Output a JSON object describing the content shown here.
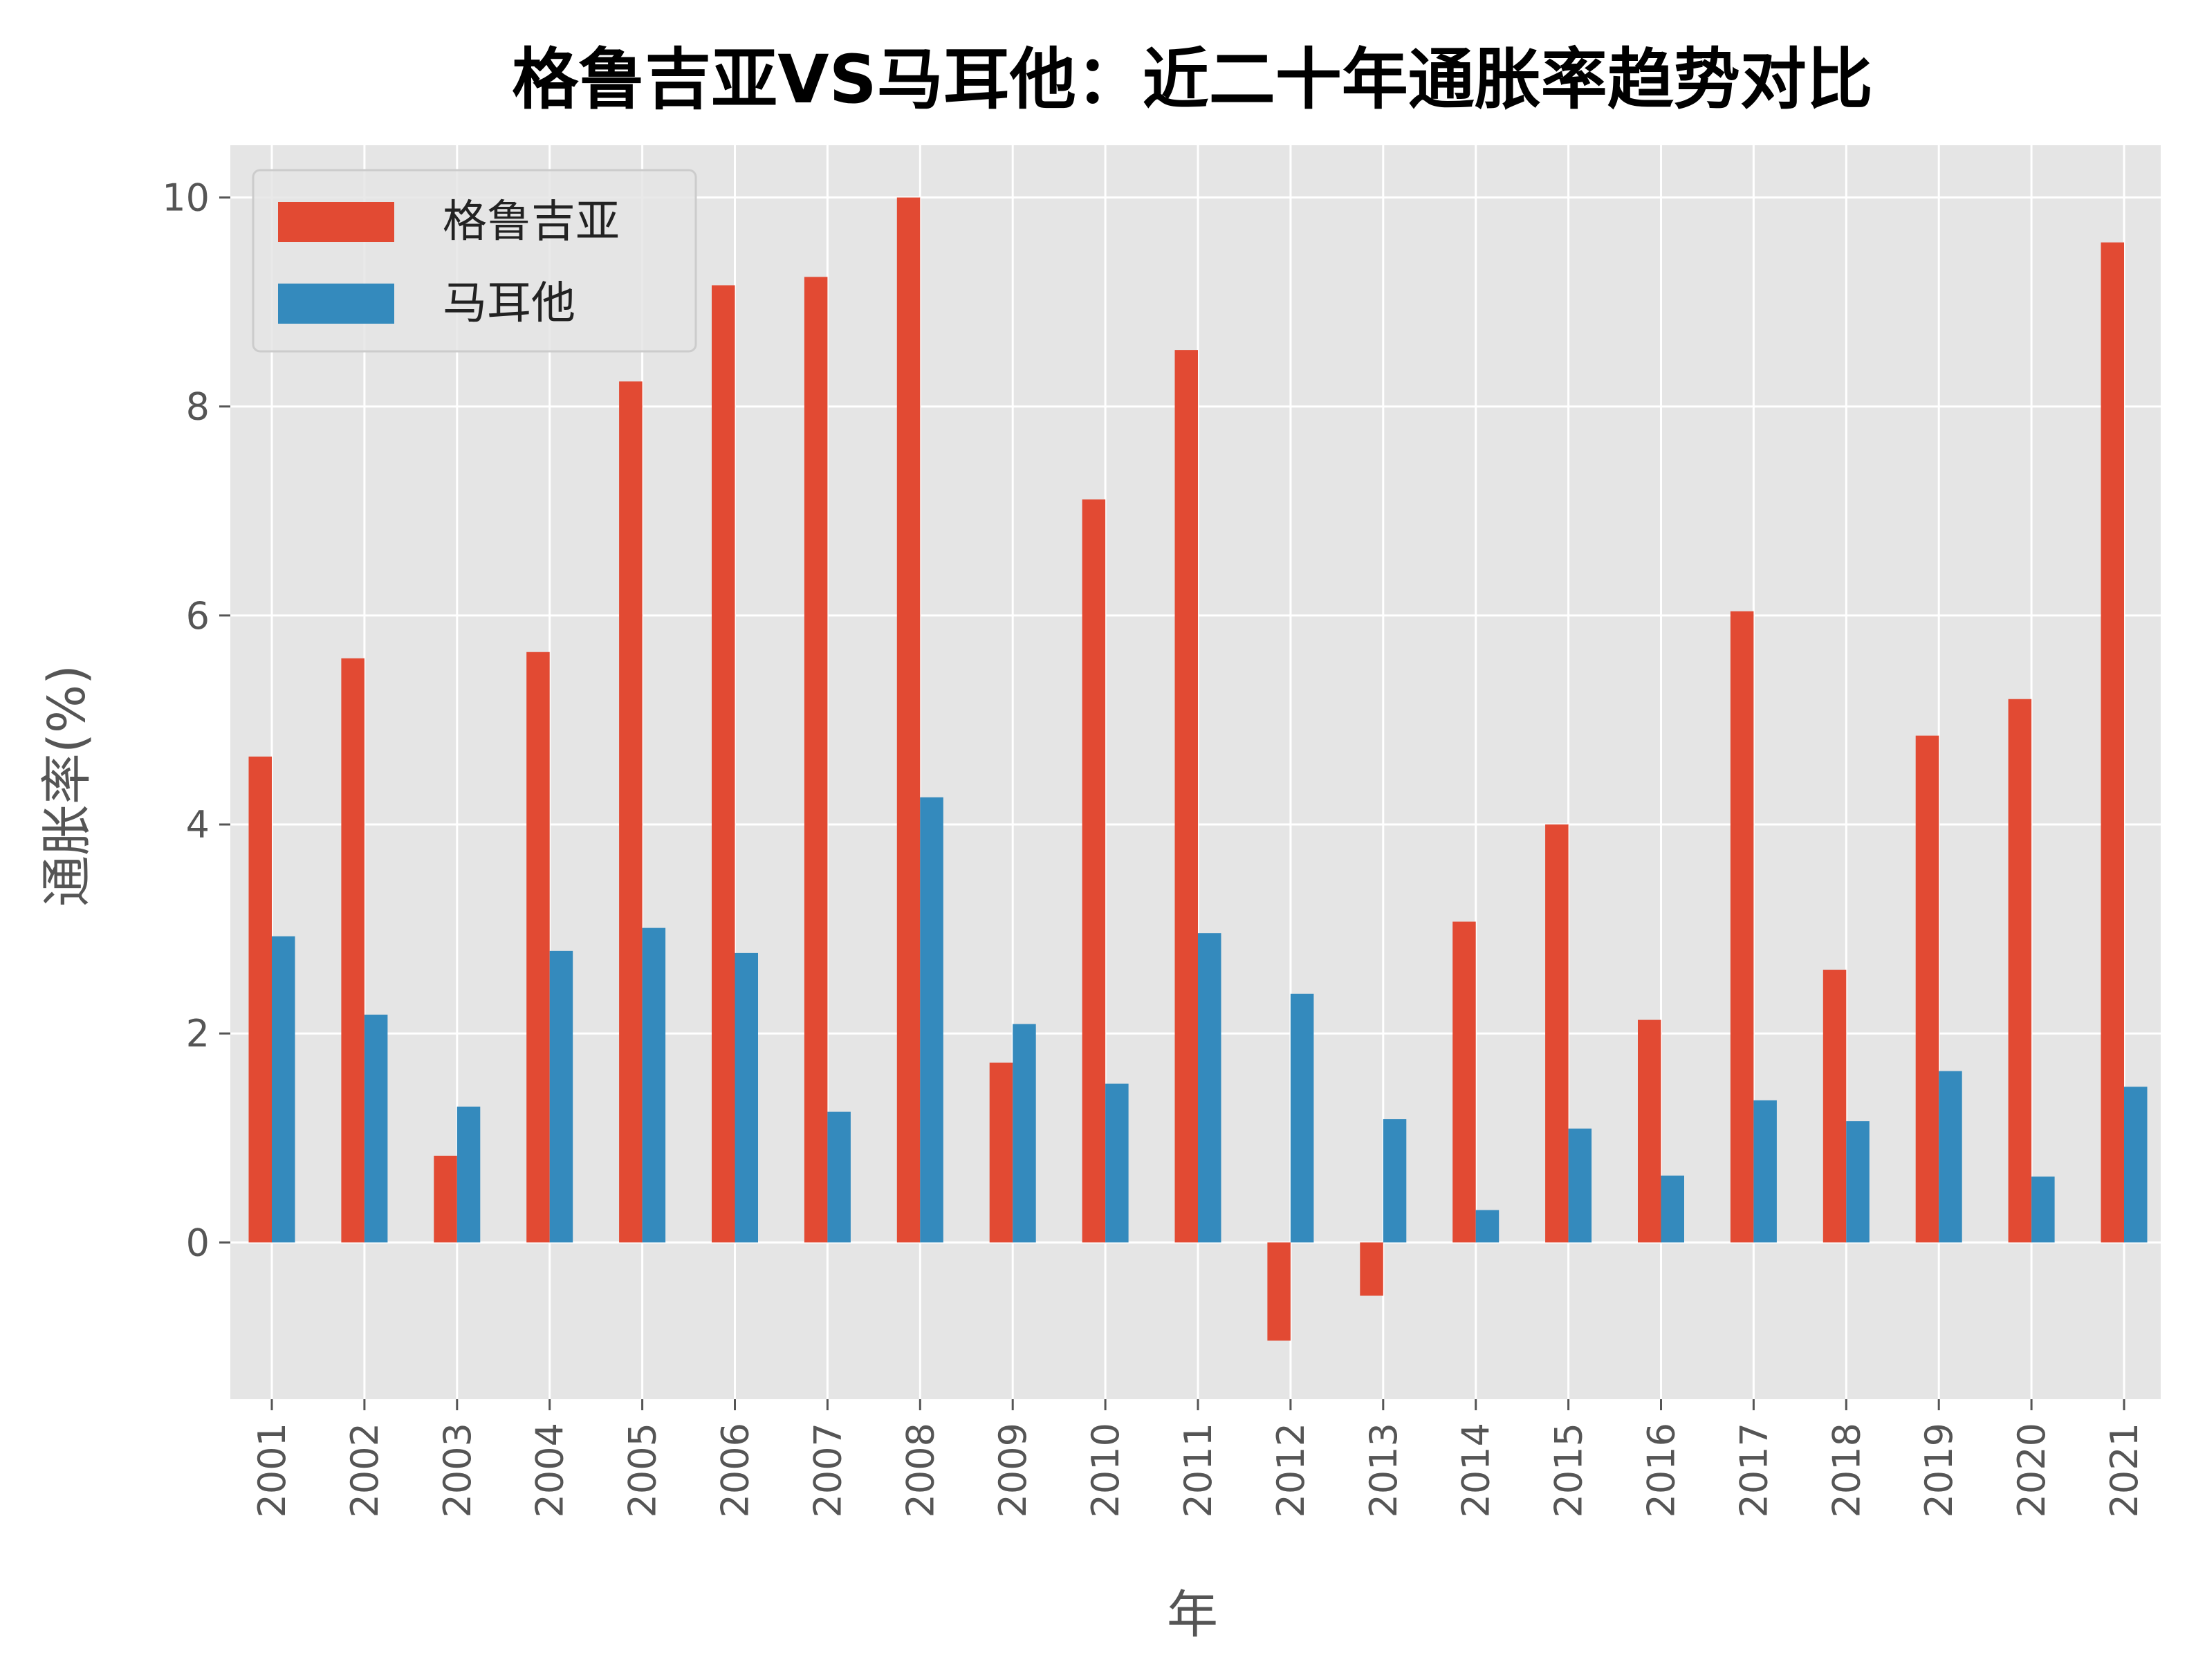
{
  "chart_data": {
    "type": "bar",
    "title": "格鲁吉亚VS马耳他：近二十年通胀率趋势对比",
    "xlabel": "年",
    "ylabel": "通胀率(%)",
    "categories": [
      "2001",
      "2002",
      "2003",
      "2004",
      "2005",
      "2006",
      "2007",
      "2008",
      "2009",
      "2010",
      "2011",
      "2012",
      "2013",
      "2014",
      "2015",
      "2016",
      "2017",
      "2018",
      "2019",
      "2020",
      "2021"
    ],
    "ylim": [
      -1.5,
      10.5
    ],
    "yticks": [
      "0",
      "2",
      "4",
      "6",
      "8",
      "10"
    ],
    "grid": true,
    "legend_position": "top-left",
    "background_color": "#e5e5e5",
    "series": [
      {
        "name": "格鲁吉亚",
        "color": "#e24a33",
        "values": [
          4.65,
          5.59,
          0.83,
          5.65,
          8.24,
          9.16,
          9.24,
          10.0,
          1.72,
          7.11,
          8.54,
          -0.94,
          -0.51,
          3.07,
          4.0,
          2.13,
          6.04,
          2.61,
          4.85,
          5.2,
          9.57
        ]
      },
      {
        "name": "马耳他",
        "color": "#348abd",
        "values": [
          2.93,
          2.18,
          1.3,
          2.79,
          3.01,
          2.77,
          1.25,
          4.26,
          2.09,
          1.52,
          2.96,
          2.38,
          1.18,
          0.31,
          1.09,
          0.64,
          1.36,
          1.16,
          1.64,
          0.63,
          1.49
        ]
      }
    ]
  }
}
